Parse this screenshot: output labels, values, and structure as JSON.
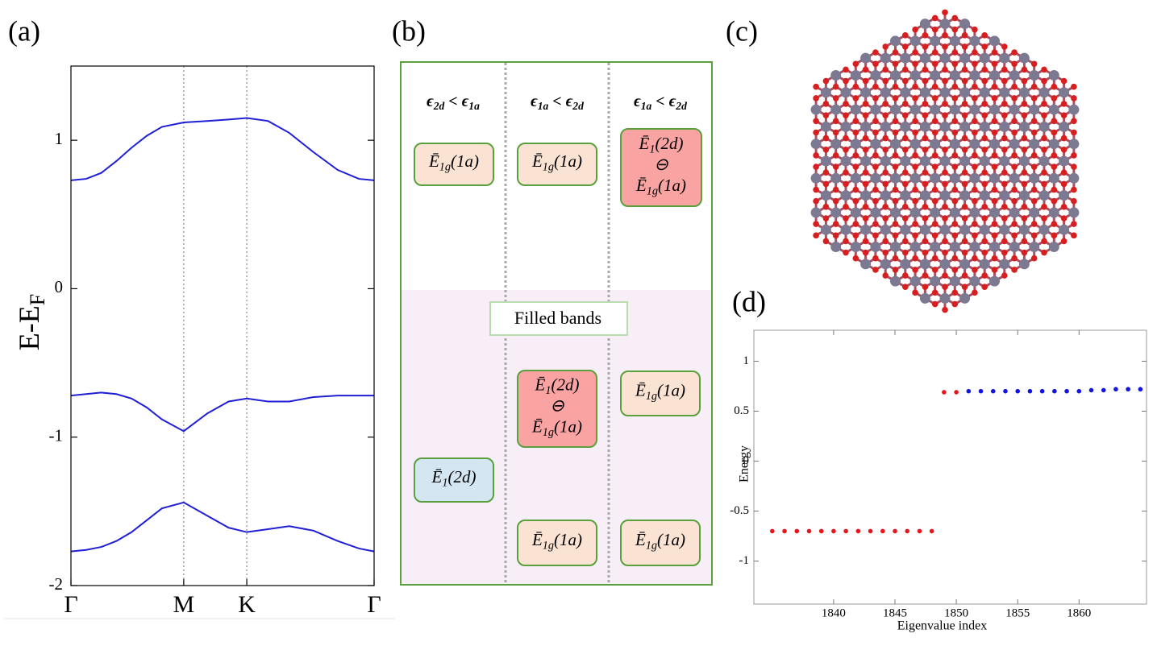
{
  "panels": [
    "(a)",
    "(b)",
    "(c)",
    "(d)"
  ],
  "chart_data": [
    {
      "type": "line",
      "ylabel": "E-E",
      "ylabel_sub": "F",
      "xlim": [
        0,
        1
      ],
      "xticks": [
        {
          "value": 0,
          "label": "Γ"
        },
        {
          "value": 0.372,
          "label": "M"
        },
        {
          "value": 0.58,
          "label": "K"
        },
        {
          "value": 1,
          "label": "Γ"
        }
      ],
      "ylim": [
        -2,
        1.5
      ],
      "yticks": [
        -2,
        -1,
        0,
        1
      ],
      "grid": "x",
      "x": [
        0,
        0.05,
        0.1,
        0.15,
        0.2,
        0.25,
        0.3,
        0.372,
        0.45,
        0.52,
        0.58,
        0.65,
        0.72,
        0.8,
        0.88,
        0.95,
        1
      ],
      "series": [
        {
          "color": "#1f1fd6",
          "values": [
            0.73,
            0.74,
            0.78,
            0.86,
            0.95,
            1.03,
            1.09,
            1.12,
            1.13,
            1.14,
            1.15,
            1.13,
            1.05,
            0.92,
            0.8,
            0.74,
            0.73
          ]
        },
        {
          "color": "#1f1fd6",
          "values": [
            -0.72,
            -0.71,
            -0.7,
            -0.71,
            -0.74,
            -0.8,
            -0.88,
            -0.96,
            -0.84,
            -0.76,
            -0.74,
            -0.76,
            -0.76,
            -0.73,
            -0.72,
            -0.72,
            -0.72
          ]
        },
        {
          "color": "#1f1fd6",
          "values": [
            -1.77,
            -1.76,
            -1.74,
            -1.7,
            -1.64,
            -1.56,
            -1.48,
            -1.44,
            -1.53,
            -1.61,
            -1.64,
            -1.62,
            -1.6,
            -1.63,
            -1.7,
            -1.75,
            -1.77
          ]
        }
      ]
    },
    {
      "type": "scatter",
      "xlabel": "Eigenvalue index",
      "ylabel": "Energy",
      "xlim": [
        1833.5,
        1865.5
      ],
      "xticks": [
        1840,
        1845,
        1850,
        1855,
        1860
      ],
      "ylim": [
        -1.43,
        1.31
      ],
      "yticks": [
        -1,
        -0.5,
        0,
        0.5,
        1
      ],
      "series": [
        {
          "color": "#e8141c",
          "x": [
            1835,
            1836,
            1837,
            1838,
            1839,
            1840,
            1841,
            1842,
            1843,
            1844,
            1845,
            1846,
            1847,
            1848,
            1849,
            1850
          ],
          "values": [
            -0.7,
            -0.7,
            -0.7,
            -0.7,
            -0.7,
            -0.7,
            -0.7,
            -0.7,
            -0.7,
            -0.7,
            -0.7,
            -0.7,
            -0.7,
            -0.7,
            0.69,
            0.69
          ]
        },
        {
          "color": "#1414e0",
          "x": [
            1851,
            1852,
            1853,
            1854,
            1855,
            1856,
            1857,
            1858,
            1859,
            1860,
            1861,
            1862,
            1863,
            1864,
            1865
          ],
          "values": [
            0.7,
            0.7,
            0.7,
            0.7,
            0.7,
            0.7,
            0.7,
            0.7,
            0.7,
            0.7,
            0.71,
            0.71,
            0.72,
            0.72,
            0.72
          ]
        }
      ]
    }
  ],
  "diagram": {
    "headers": [
      [
        {
          "text": "ϵ"
        },
        {
          "sub": "2d"
        },
        {
          "text": " < ϵ"
        },
        {
          "sub": "1a"
        }
      ],
      [
        {
          "text": "ϵ"
        },
        {
          "sub": "1a"
        },
        {
          "text": " < ϵ"
        },
        {
          "sub": "2d"
        }
      ],
      [
        {
          "text": "ϵ"
        },
        {
          "sub": "1a"
        },
        {
          "text": " < ϵ"
        },
        {
          "sub": "2d"
        }
      ]
    ],
    "filled_label": "Filled bands",
    "boxes": [
      {
        "color": "#fae3d3",
        "lines": [
          [
            {
              "text": "Ē"
            },
            {
              "sub": "1g"
            },
            {
              "text": "(1a)"
            }
          ]
        ]
      },
      {
        "color": "#d5e6f3",
        "lines": [
          [
            {
              "text": "Ē"
            },
            {
              "sub": "1"
            },
            {
              "text": "(2d)"
            }
          ]
        ]
      },
      {
        "color": "#fae3d3",
        "lines": [
          [
            {
              "text": "Ē"
            },
            {
              "sub": "1g"
            },
            {
              "text": "(1a)"
            }
          ]
        ]
      },
      {
        "color": "#f9a3a3",
        "lines": [
          [
            {
              "text": "Ē"
            },
            {
              "sub": "1"
            },
            {
              "text": "(2d)"
            }
          ],
          [
            {
              "text": "⊖"
            }
          ],
          [
            {
              "text": "Ē"
            },
            {
              "sub": "1g"
            },
            {
              "text": "(1a)"
            }
          ]
        ]
      },
      {
        "color": "#fae3d3",
        "lines": [
          [
            {
              "text": "Ē"
            },
            {
              "sub": "1g"
            },
            {
              "text": "(1a)"
            }
          ]
        ]
      },
      {
        "color": "#f9a3a3",
        "lines": [
          [
            {
              "text": "Ē"
            },
            {
              "sub": "1"
            },
            {
              "text": "(2d)"
            }
          ],
          [
            {
              "text": "⊖"
            }
          ],
          [
            {
              "text": "Ē"
            },
            {
              "sub": "1g"
            },
            {
              "text": "(1a)"
            }
          ]
        ]
      },
      {
        "color": "#fae3d3",
        "lines": [
          [
            {
              "text": "Ē"
            },
            {
              "sub": "1g"
            },
            {
              "text": "(1a)"
            }
          ]
        ]
      },
      {
        "color": "#fae3d3",
        "lines": [
          [
            {
              "text": "Ē"
            },
            {
              "sub": "1g"
            },
            {
              "text": "(1a)"
            }
          ]
        ]
      }
    ]
  }
}
